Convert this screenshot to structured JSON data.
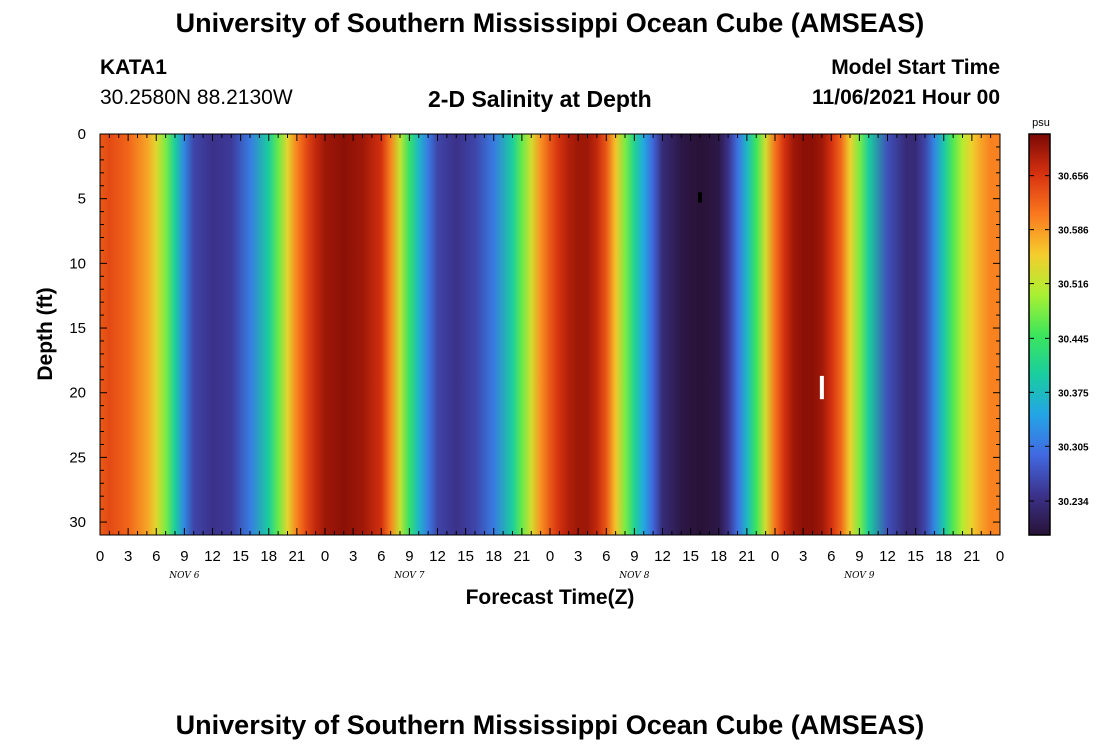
{
  "header": {
    "title_top": "University of Southern Mississippi Ocean Cube (AMSEAS)",
    "station": "KATA1",
    "coords": "30.2580N  88.2130W",
    "plot_title": "2-D Salinity at Depth",
    "start_label": "Model Start Time",
    "start_value": "11/06/2021 Hour 00",
    "title_bottom": "University of Southern Mississippi Ocean Cube (AMSEAS)"
  },
  "chart_data": {
    "type": "heatmap",
    "title": "2-D Salinity at Depth",
    "xlabel": "Forecast Time(Z)",
    "ylabel": "Depth (ft)",
    "units": "psu",
    "xlim_hours": [
      0,
      96
    ],
    "ylim_ft": [
      0,
      31
    ],
    "x_ticks": [
      "0",
      "3",
      "6",
      "9",
      "12",
      "15",
      "18",
      "21",
      "0",
      "3",
      "6",
      "9",
      "12",
      "15",
      "18",
      "21",
      "0",
      "3",
      "6",
      "9",
      "12",
      "15",
      "18",
      "21",
      "0",
      "3",
      "6",
      "9",
      "12",
      "15",
      "18",
      "21",
      "0"
    ],
    "day_labels": [
      "NOV  6",
      "NOV  7",
      "NOV  8",
      "NOV  9"
    ],
    "y_ticks": [
      "0",
      "5",
      "10",
      "15",
      "20",
      "25",
      "30"
    ],
    "colorbar": {
      "label": "psu",
      "min": 30.19,
      "max": 30.71,
      "ticks": [
        "30.656",
        "30.586",
        "30.516",
        "30.445",
        "30.375",
        "30.305",
        "30.234"
      ]
    },
    "salinity_by_hour": {
      "hours": [
        0,
        1,
        3,
        5,
        6,
        7,
        8,
        9,
        10,
        12,
        14,
        16,
        18,
        19,
        20,
        21,
        22,
        23,
        24,
        26,
        28,
        30,
        31,
        32,
        33,
        34,
        35,
        36,
        38,
        40,
        42,
        44,
        45,
        46,
        47,
        48,
        49,
        50,
        51,
        52,
        53,
        54,
        55,
        56,
        57,
        58,
        59,
        60,
        62,
        64,
        66,
        67,
        68,
        69,
        70,
        71,
        72,
        73,
        74,
        75,
        76,
        77,
        78,
        79,
        80,
        81,
        82,
        84,
        86,
        87,
        88,
        89,
        90,
        91,
        92,
        93,
        94,
        95,
        96
      ],
      "values": [
        30.63,
        30.64,
        30.62,
        30.58,
        30.54,
        30.48,
        30.4,
        30.32,
        30.26,
        30.24,
        30.25,
        30.31,
        30.4,
        30.47,
        30.54,
        30.6,
        30.64,
        30.67,
        30.69,
        30.7,
        30.69,
        30.66,
        30.6,
        30.52,
        30.44,
        30.37,
        30.31,
        30.26,
        30.24,
        30.26,
        30.31,
        30.4,
        30.47,
        30.53,
        30.59,
        30.63,
        30.66,
        30.68,
        30.69,
        30.69,
        30.67,
        30.63,
        30.56,
        30.48,
        30.41,
        30.35,
        30.29,
        30.23,
        30.2,
        30.19,
        30.2,
        30.24,
        30.3,
        30.37,
        30.45,
        30.53,
        30.61,
        30.66,
        30.69,
        30.7,
        30.7,
        30.69,
        30.66,
        30.62,
        30.55,
        30.48,
        30.4,
        30.27,
        30.23,
        30.23,
        30.26,
        30.32,
        30.39,
        30.46,
        30.51,
        30.55,
        30.58,
        30.6,
        30.6
      ]
    },
    "markers": [
      {
        "hour": 64.0,
        "depth_top": 4.5,
        "depth_bottom": 5.3,
        "color": "#000000"
      },
      {
        "hour": 77.0,
        "depth_top": 18.7,
        "depth_bottom": 20.5,
        "color": "#ffffff"
      }
    ]
  }
}
